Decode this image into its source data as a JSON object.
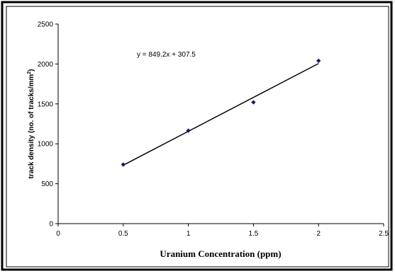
{
  "chart_data": {
    "type": "scatter",
    "xlabel": "Uranium Concentration (ppm)",
    "ylabel_main": "track density (no. of tracks/mm",
    "ylabel_sup": "2",
    "ylabel_tail": ")",
    "equation": "y = 849.2x + 307.5",
    "xlim": [
      0,
      2.5
    ],
    "ylim": [
      0,
      2500
    ],
    "xticks": [
      0,
      0.5,
      1,
      1.5,
      2,
      2.5
    ],
    "yticks": [
      0,
      500,
      1000,
      1500,
      2000,
      2500
    ],
    "xtick_labels": [
      "0",
      "0.5",
      "1",
      "1.5",
      "2",
      "2.5"
    ],
    "ytick_labels": [
      "0",
      "500",
      "1000",
      "1500",
      "2000",
      "2500"
    ],
    "grid": false,
    "series": [
      {
        "x": [
          0.5,
          1,
          1.5,
          2
        ],
        "y": [
          740,
          1165,
          1520,
          2040
        ],
        "color": "#1a1a66"
      }
    ],
    "trendline": {
      "slope": 849.2,
      "intercept": 307.5,
      "x_range": [
        0.5,
        2
      ],
      "color": "#000000"
    }
  }
}
